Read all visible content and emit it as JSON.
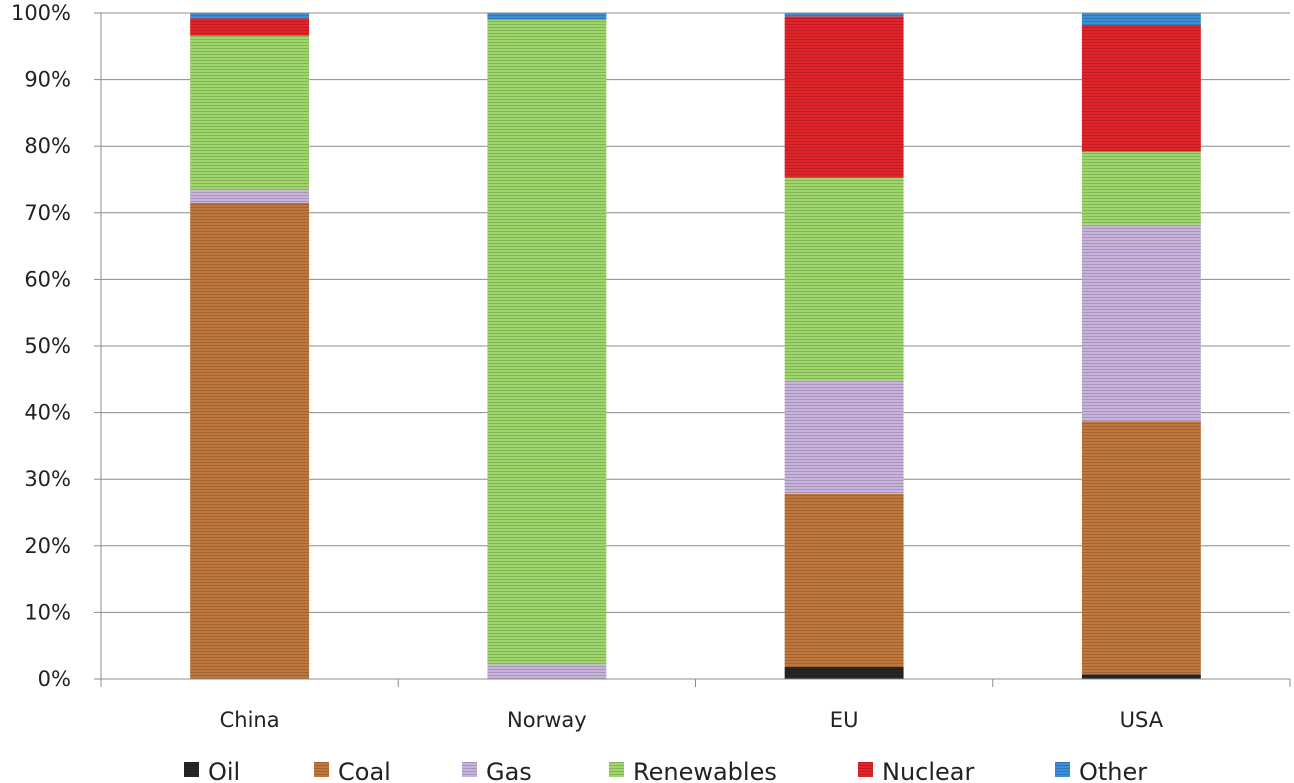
{
  "chart_data": {
    "type": "bar",
    "stacked": true,
    "normalized": true,
    "categories": [
      "China",
      "Norway",
      "EU",
      "USA"
    ],
    "series": [
      {
        "name": "Oil",
        "color": "#262626",
        "values": [
          0,
          0,
          1.8,
          0.7
        ]
      },
      {
        "name": "Coal",
        "color": "#c0773d",
        "values": [
          71.5,
          0,
          26,
          38
        ]
      },
      {
        "name": "Gas",
        "color": "#c7b3dc",
        "values": [
          1.9,
          2.2,
          17,
          29.5
        ]
      },
      {
        "name": "Renewables",
        "color": "#9fd66b",
        "values": [
          23.2,
          96.8,
          30.5,
          11
        ]
      },
      {
        "name": "Nuclear",
        "color": "#e1232a",
        "values": [
          2.6,
          0,
          24.2,
          19
        ]
      },
      {
        "name": "Other",
        "color": "#3b8fd8",
        "values": [
          0.8,
          1.0,
          0.5,
          1.8
        ]
      }
    ],
    "ylim": [
      0,
      100
    ],
    "yticks": [
      "0%",
      "10%",
      "20%",
      "30%",
      "40%",
      "50%",
      "60%",
      "70%",
      "80%",
      "90%",
      "100%"
    ],
    "grid": true,
    "legend_position": "bottom"
  }
}
